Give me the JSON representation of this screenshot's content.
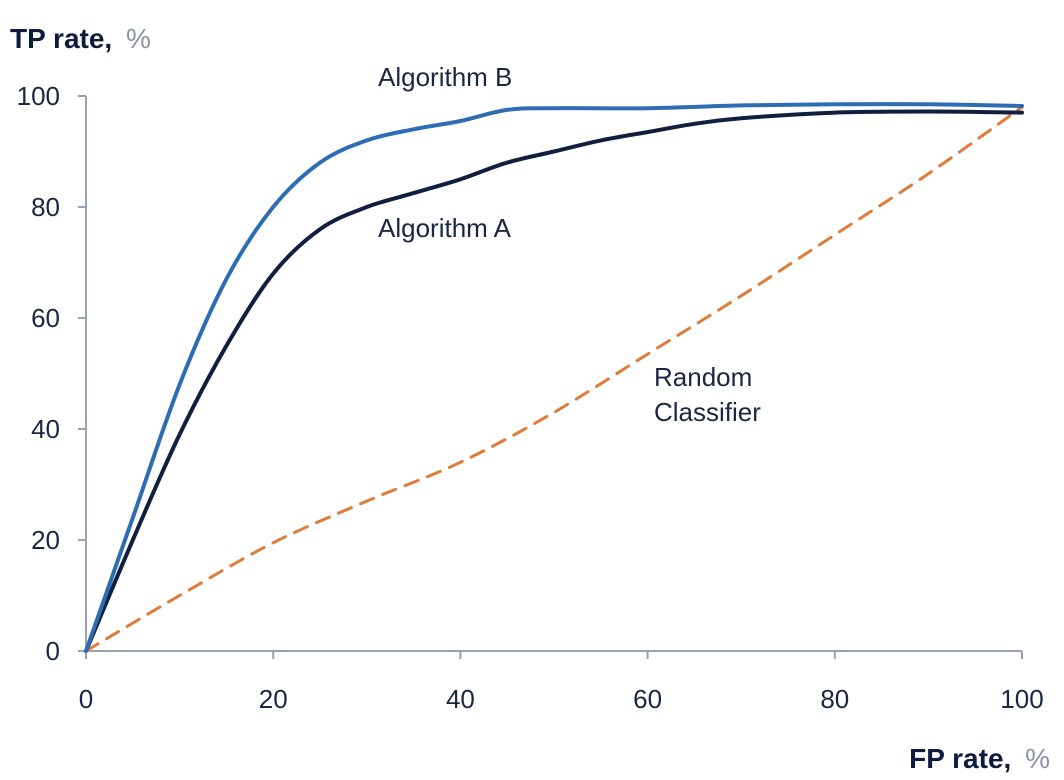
{
  "chart_data": {
    "type": "line",
    "ylabel": {
      "main": "TP rate,",
      "unit": "%"
    },
    "xlabel": {
      "main": "FP rate,",
      "unit": "%"
    },
    "xlim": [
      0,
      100
    ],
    "ylim": [
      0,
      100
    ],
    "x_ticks": [
      "0",
      "20",
      "40",
      "60",
      "80",
      "100"
    ],
    "y_ticks": [
      "0",
      "20",
      "40",
      "60",
      "80",
      "100"
    ],
    "grid": false,
    "series": [
      {
        "name": "Algorithm B",
        "color": "#2e6db4",
        "style": "solid",
        "x": [
          0,
          5,
          10,
          15,
          20,
          25,
          30,
          35,
          40,
          45,
          50,
          60,
          70,
          80,
          90,
          100
        ],
        "y": [
          0,
          24,
          48,
          67,
          80,
          88,
          92,
          94,
          95.5,
          97.5,
          97.8,
          97.8,
          98.3,
          98.5,
          98.5,
          98.2
        ]
      },
      {
        "name": "Algorithm A",
        "color": "#0f1f3d",
        "style": "solid",
        "x": [
          0,
          5,
          10,
          15,
          20,
          25,
          30,
          35,
          40,
          45,
          50,
          55,
          60,
          65,
          70,
          80,
          90,
          100
        ],
        "y": [
          0,
          20,
          39,
          55,
          68,
          76,
          80,
          82.5,
          85,
          88,
          90,
          92,
          93.5,
          95,
          96,
          97,
          97.2,
          97
        ]
      },
      {
        "name": "Random Classifier",
        "color": "#e07b39",
        "style": "dashed",
        "x": [
          0,
          10,
          20,
          30,
          40,
          50,
          60,
          70,
          80,
          90,
          100
        ],
        "y": [
          0,
          10,
          19.5,
          27,
          34,
          43,
          53.5,
          64,
          75,
          86,
          98
        ]
      }
    ],
    "annotations": {
      "algorithm_b": "Algorithm B",
      "algorithm_a": "Algorithm A",
      "random_line1": "Random",
      "random_line2": "Classifier"
    }
  }
}
